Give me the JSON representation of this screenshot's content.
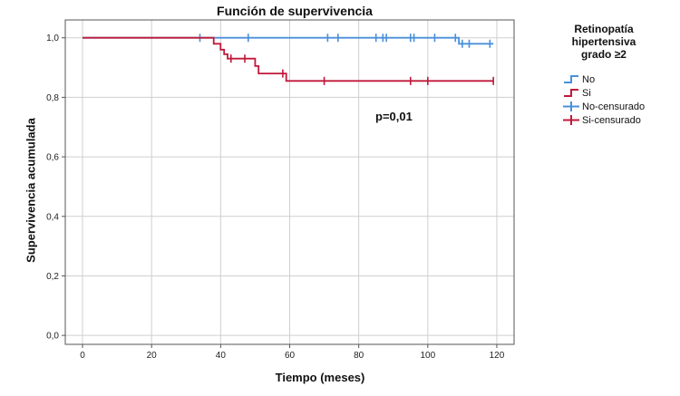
{
  "chart_data": {
    "type": "line",
    "title": "Función de supervivencia",
    "xlabel": "Tiempo (meses)",
    "ylabel": "Supervivencia acumulada",
    "xlim": [
      -5,
      125
    ],
    "ylim": [
      -0.03,
      1.06
    ],
    "x_ticks": [
      0,
      20,
      40,
      60,
      80,
      100,
      120
    ],
    "y_ticks": [
      0.0,
      0.2,
      0.4,
      0.6,
      0.8,
      1.0
    ],
    "x_tick_labels": [
      "0",
      "20",
      "40",
      "60",
      "80",
      "100",
      "120"
    ],
    "y_tick_labels": [
      "0,0",
      "0,2",
      "0,4",
      "0,6",
      "0,8",
      "1,0"
    ],
    "grid": true,
    "legend_placement": "right",
    "legend_title": [
      "Retinopatía",
      "hipertensiva",
      "grado ≥2"
    ],
    "annotation": "p=0,01",
    "series": [
      {
        "name": "No",
        "color": "#4a90d9",
        "steps": [
          [
            0,
            1.0
          ],
          [
            109,
            1.0
          ],
          [
            109,
            0.98
          ],
          [
            119,
            0.98
          ]
        ],
        "censored": [
          34,
          48,
          71,
          74,
          85,
          87,
          88,
          95,
          96,
          102,
          108,
          110,
          112,
          118
        ]
      },
      {
        "name": "Si",
        "color": "#c0193a",
        "steps": [
          [
            0,
            1.0
          ],
          [
            38,
            1.0
          ],
          [
            38,
            0.98
          ],
          [
            40,
            0.98
          ],
          [
            40,
            0.96
          ],
          [
            41,
            0.96
          ],
          [
            41,
            0.945
          ],
          [
            42,
            0.945
          ],
          [
            42,
            0.93
          ],
          [
            50,
            0.93
          ],
          [
            50,
            0.905
          ],
          [
            51,
            0.905
          ],
          [
            51,
            0.88
          ],
          [
            59,
            0.88
          ],
          [
            59,
            0.855
          ],
          [
            119,
            0.855
          ]
        ],
        "censored": [
          43,
          47,
          58,
          70,
          95,
          100,
          119
        ]
      }
    ],
    "legend": [
      {
        "label": "No",
        "color": "#4a90d9",
        "symbol": "line"
      },
      {
        "label": "Si",
        "color": "#c0193a",
        "symbol": "line"
      },
      {
        "label": "No-censurado",
        "color": "#4a90d9",
        "symbol": "censor"
      },
      {
        "label": "Si-censurado",
        "color": "#c0193a",
        "symbol": "censor"
      }
    ]
  }
}
